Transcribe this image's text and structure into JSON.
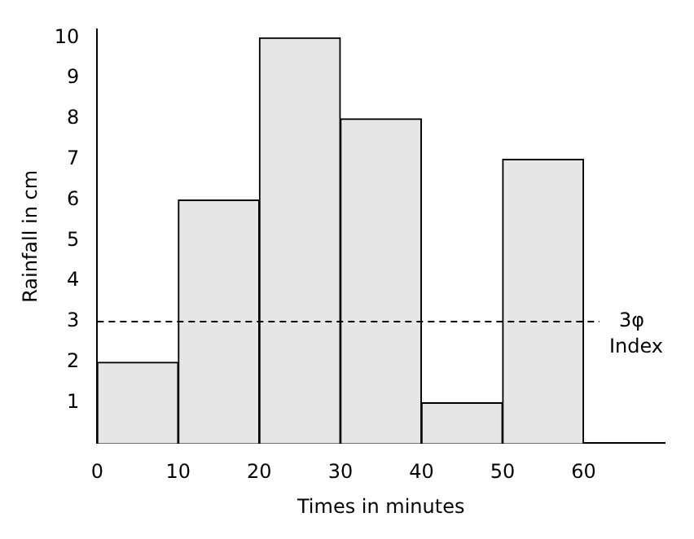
{
  "chart_data": {
    "type": "histogram",
    "xlabel": "Times in minutes",
    "ylabel": "Rainfall in cm",
    "bins": [
      0,
      10,
      20,
      30,
      40,
      50,
      60
    ],
    "values": [
      2,
      6,
      10,
      8,
      1,
      7
    ],
    "color": "#e6e6e6",
    "xlim": [
      0,
      70
    ],
    "xticks": [
      0,
      10,
      20,
      30,
      40,
      50,
      60
    ],
    "ylim": [
      0,
      10.2
    ],
    "yticks": [
      1,
      2,
      3,
      4,
      5,
      6,
      7,
      8,
      9,
      10
    ],
    "grid": false,
    "legend": false,
    "ref_lines": [
      {
        "axis": "y",
        "value": 3,
        "label": "3φ Index",
        "line_style": "dashed",
        "color": "#000000"
      }
    ]
  }
}
